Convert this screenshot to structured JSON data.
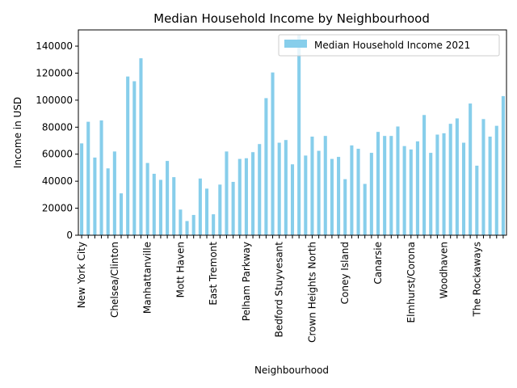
{
  "chart_data": {
    "type": "bar",
    "title": "Median Household Income by Neighbourhood",
    "xlabel": "Neighbourhood",
    "ylabel": "Income in USD",
    "ylim": [
      0,
      152000
    ],
    "yticks": [
      0,
      20000,
      40000,
      60000,
      80000,
      100000,
      120000,
      140000
    ],
    "grid": false,
    "legend_position": "top-right",
    "bar_color": "#87ceeb",
    "series": [
      {
        "name": "Median Household Income 2021",
        "values": [
          68000,
          84000,
          57500,
          85000,
          49500,
          62000,
          31000,
          117500,
          114000,
          131000,
          53500,
          45500,
          41000,
          55000,
          43000,
          19000,
          10500,
          15000,
          42000,
          34500,
          15500,
          37500,
          62000,
          39500,
          56500,
          57000,
          61500,
          67500,
          101500,
          120500,
          68500,
          70500,
          52500,
          148000,
          59000,
          73000,
          62500,
          73500,
          56500,
          58000,
          41500,
          66500,
          64000,
          38000,
          61000,
          76500,
          73500,
          73500,
          80500,
          66000,
          63500,
          69500,
          89000,
          61000,
          74500,
          75500,
          82500,
          86500,
          68500,
          97500,
          51500,
          86000,
          73000,
          81000,
          103000
        ]
      }
    ],
    "tick_labels": [
      {
        "index": 0,
        "label": "New York City"
      },
      {
        "index": 5,
        "label": "Chelsea/Clinton"
      },
      {
        "index": 10,
        "label": "Manhattanville"
      },
      {
        "index": 15,
        "label": "Mott Haven"
      },
      {
        "index": 20,
        "label": "East Tremont"
      },
      {
        "index": 25,
        "label": "Pelham Parkway"
      },
      {
        "index": 30,
        "label": "Bedford Stuyvesant"
      },
      {
        "index": 35,
        "label": "Crown Heights North"
      },
      {
        "index": 40,
        "label": "Coney Island"
      },
      {
        "index": 45,
        "label": "Canarsie"
      },
      {
        "index": 50,
        "label": "Elmhurst/Corona"
      },
      {
        "index": 55,
        "label": "Woodhaven"
      },
      {
        "index": 60,
        "label": "The Rockaways"
      }
    ]
  }
}
